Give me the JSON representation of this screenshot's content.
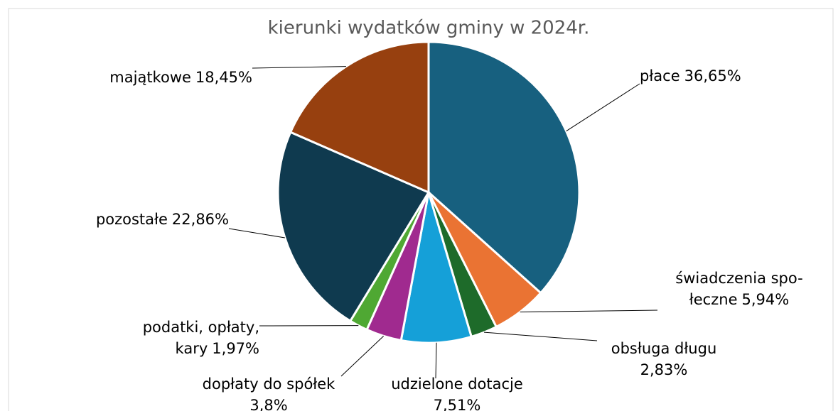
{
  "chart_data": {
    "type": "pie",
    "title": "kierunki wydatków gminy w 2024r.",
    "categories": [
      "płace",
      "świadczenia spo-\nłeczne",
      "obsługa długu",
      "udzielone dotacje",
      "dopłaty do spółek",
      "podatki, opłaty,\nkary",
      "pozostałe",
      "majątkowe"
    ],
    "values": [
      36.65,
      5.94,
      2.83,
      7.51,
      3.8,
      1.97,
      22.86,
      18.45
    ],
    "value_labels": [
      "36,65%",
      "5,94%",
      "2,83%",
      "7,51%",
      "3,8%",
      "1,97%",
      "22,86%",
      "18,45%"
    ],
    "colors": [
      "#17607f",
      "#ea7333",
      "#1e6b2a",
      "#15a0d8",
      "#a02a8f",
      "#4fa833",
      "#0f3a4f",
      "#97400f"
    ]
  }
}
